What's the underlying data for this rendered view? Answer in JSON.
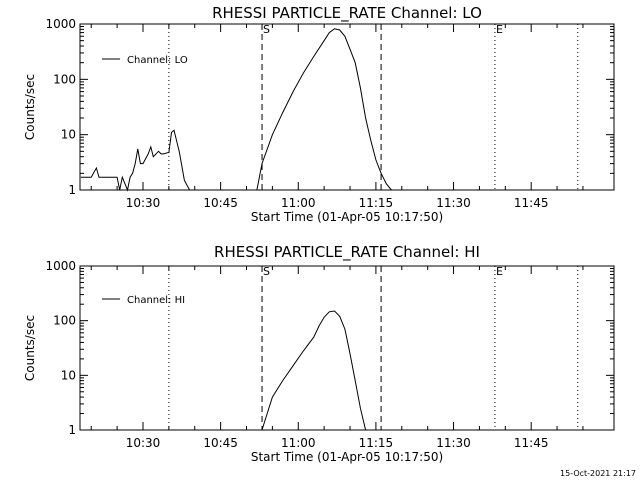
{
  "chart_data": [
    {
      "type": "line",
      "title": "RHESSI PARTICLE_RATE Channel: LO",
      "xlabel": "Start Time (01-Apr-05 10:17:50)",
      "ylabel": "Counts/sec",
      "yscale": "log",
      "ylim": [
        1,
        1000
      ],
      "xlim_minutes": [
        617.83,
        721.0
      ],
      "x_ticks": [
        "10:30",
        "10:45",
        "11:00",
        "11:15",
        "11:30",
        "11:45"
      ],
      "y_ticks": [
        "1",
        "10",
        "100",
        "1000"
      ],
      "grid": false,
      "legend": {
        "position": "top-left",
        "entries": [
          "Channel: LO"
        ]
      },
      "markers": [
        {
          "label": "",
          "time": "10:35",
          "style": "dotted"
        },
        {
          "label": "S",
          "time": "10:53",
          "style": "dashed"
        },
        {
          "label": "",
          "time": "11:16",
          "style": "dashed"
        },
        {
          "label": "E",
          "time": "11:38",
          "style": "dotted"
        },
        {
          "label": "",
          "time": "11:54",
          "style": "dotted"
        }
      ],
      "series": [
        {
          "name": "Channel: LO",
          "x": [
            "10:18",
            "10:20",
            "10:21",
            "10:21.5",
            "10:22",
            "10:25",
            "10:25.5",
            "10:26",
            "10:27",
            "10:27.5",
            "10:28",
            "10:28.5",
            "10:29",
            "10:29.5",
            "10:30",
            "10:31",
            "10:31.5",
            "10:32",
            "10:33",
            "10:33.5",
            "10:34",
            "10:35",
            "10:35.5",
            "10:36",
            "10:37",
            "10:38",
            "10:39",
            "10:52",
            "10:53",
            "10:55",
            "10:57",
            "10:59",
            "11:01",
            "11:03",
            "11:05",
            "11:06",
            "11:07",
            "11:08",
            "11:09",
            "11:10",
            "11:11",
            "11:12",
            "11:13",
            "11:14",
            "11:15",
            "11:16",
            "11:17",
            "11:18"
          ],
          "y": [
            1.7,
            1.7,
            2.5,
            1.7,
            1.7,
            1.7,
            1.0,
            1.7,
            1.0,
            1.7,
            2.0,
            3.0,
            5.5,
            3.0,
            3.0,
            4.5,
            6.0,
            4.0,
            5.0,
            4.5,
            4.5,
            4.8,
            11,
            12,
            5,
            1.5,
            1,
            1,
            3,
            10,
            25,
            60,
            130,
            260,
            500,
            700,
            820,
            780,
            600,
            350,
            200,
            70,
            20,
            8,
            3.5,
            2,
            1.3,
            1
          ]
        }
      ]
    },
    {
      "type": "line",
      "title": "RHESSI PARTICLE_RATE Channel: HI",
      "xlabel": "Start Time (01-Apr-05 10:17:50)",
      "ylabel": "Counts/sec",
      "yscale": "log",
      "ylim": [
        1,
        1000
      ],
      "xlim_minutes": [
        617.83,
        721.0
      ],
      "x_ticks": [
        "10:30",
        "10:45",
        "11:00",
        "11:15",
        "11:30",
        "11:45"
      ],
      "y_ticks": [
        "1",
        "10",
        "100",
        "1000"
      ],
      "grid": false,
      "legend": {
        "position": "top-left",
        "entries": [
          "Channel: HI"
        ]
      },
      "markers": [
        {
          "label": "",
          "time": "10:35",
          "style": "dotted"
        },
        {
          "label": "S",
          "time": "10:53",
          "style": "dashed"
        },
        {
          "label": "",
          "time": "11:16",
          "style": "dashed"
        },
        {
          "label": "E",
          "time": "11:38",
          "style": "dotted"
        },
        {
          "label": "",
          "time": "11:54",
          "style": "dotted"
        }
      ],
      "series": [
        {
          "name": "Channel: HI",
          "x": [
            "10:53",
            "10:54",
            "10:55",
            "10:57",
            "10:59",
            "11:01",
            "11:03",
            "11:04",
            "11:05",
            "11:06",
            "11:07",
            "11:08",
            "11:09",
            "11:10",
            "11:11",
            "11:12",
            "11:13"
          ],
          "y": [
            1,
            2,
            4,
            8,
            15,
            28,
            50,
            80,
            115,
            145,
            150,
            120,
            70,
            25,
            8,
            2.5,
            1
          ]
        }
      ]
    }
  ],
  "footer": {
    "timestamp": "15-Oct-2021 21:17"
  },
  "colors": {
    "line": "#000000",
    "background": "#ffffff"
  }
}
